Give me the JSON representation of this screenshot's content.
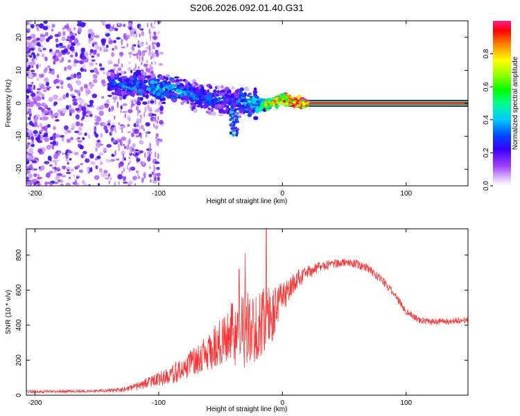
{
  "figure_title": "S206.2026.092.01.40.G31",
  "colors": {
    "snr_line": "#ff3333",
    "spectrum_baseline": "#ff2a2a",
    "axis": "#000000",
    "background": "#ffffff"
  },
  "chart_data": [
    {
      "type": "heatmap",
      "title": "S206.2026.092.01.40.G31",
      "xlabel": "Height of straight line (km)",
      "ylabel": "Frequency (Hz)",
      "xlim": [
        -207,
        150
      ],
      "ylim": [
        -25,
        25
      ],
      "xticks": [
        -200,
        -100,
        0,
        100
      ],
      "xtick_labels": [
        "-200",
        "-100",
        "0",
        "100"
      ],
      "yticks": [
        -20,
        -10,
        0,
        10,
        20
      ],
      "ytick_labels": [
        "-20",
        "-10",
        "0",
        "10",
        "20"
      ],
      "colorbar": {
        "label": "Normalized spectral amplitude",
        "range": [
          0.0,
          1.0
        ],
        "ticks": [
          0.0,
          0.2,
          0.4,
          0.6,
          0.8
        ],
        "tick_labels": [
          "0.0",
          "0.2",
          "0.4",
          "0.6",
          "0.8"
        ]
      },
      "ridge": {
        "x": [
          -140,
          -120,
          -100,
          -80,
          -60,
          -40,
          -25,
          -15,
          -5,
          0,
          10,
          20,
          150
        ],
        "freq": [
          6,
          5.5,
          5,
          3.5,
          1.5,
          0.5,
          0,
          -0.5,
          0.5,
          1.5,
          0.5,
          0,
          0
        ],
        "amplitude": [
          0.3,
          0.35,
          0.38,
          0.35,
          0.3,
          0.3,
          0.4,
          0.5,
          0.8,
          0.8,
          0.95,
          1.0,
          1.0
        ]
      }
    },
    {
      "type": "line",
      "xlabel": "Height of straight line (km)",
      "ylabel": "SNR (10 * v/v)",
      "xlim": [
        -207,
        150
      ],
      "ylim": [
        0,
        950
      ],
      "xticks": [
        -200,
        -100,
        0,
        100
      ],
      "xtick_labels": [
        "-200",
        "-100",
        "0",
        "100"
      ],
      "yticks": [
        0,
        200,
        400,
        600,
        800
      ],
      "ytick_labels": [
        "0",
        "200",
        "400",
        "600",
        "800"
      ],
      "series": [
        {
          "name": "SNR",
          "x": [
            -207,
            -180,
            -150,
            -130,
            -120,
            -110,
            -100,
            -90,
            -80,
            -70,
            -60,
            -50,
            -40,
            -30,
            -20,
            -10,
            0,
            10,
            20,
            30,
            40,
            50,
            60,
            70,
            80,
            90,
            100,
            110,
            120,
            130,
            140,
            150
          ],
          "y": [
            20,
            22,
            25,
            30,
            45,
            70,
            90,
            115,
            160,
            200,
            250,
            300,
            350,
            380,
            400,
            450,
            560,
            650,
            700,
            730,
            750,
            755,
            750,
            720,
            660,
            580,
            480,
            430,
            420,
            420,
            425,
            430
          ],
          "noise": [
            8,
            8,
            8,
            12,
            20,
            30,
            40,
            55,
            70,
            85,
            110,
            150,
            190,
            230,
            220,
            190,
            90,
            60,
            40,
            30,
            25,
            25,
            25,
            25,
            25,
            22,
            20,
            18,
            18,
            18,
            18,
            18
          ],
          "spikes": [
            [
              -35,
              720
            ],
            [
              -30,
              810
            ],
            [
              -13,
              955
            ],
            [
              -10,
              560
            ]
          ]
        }
      ]
    }
  ]
}
